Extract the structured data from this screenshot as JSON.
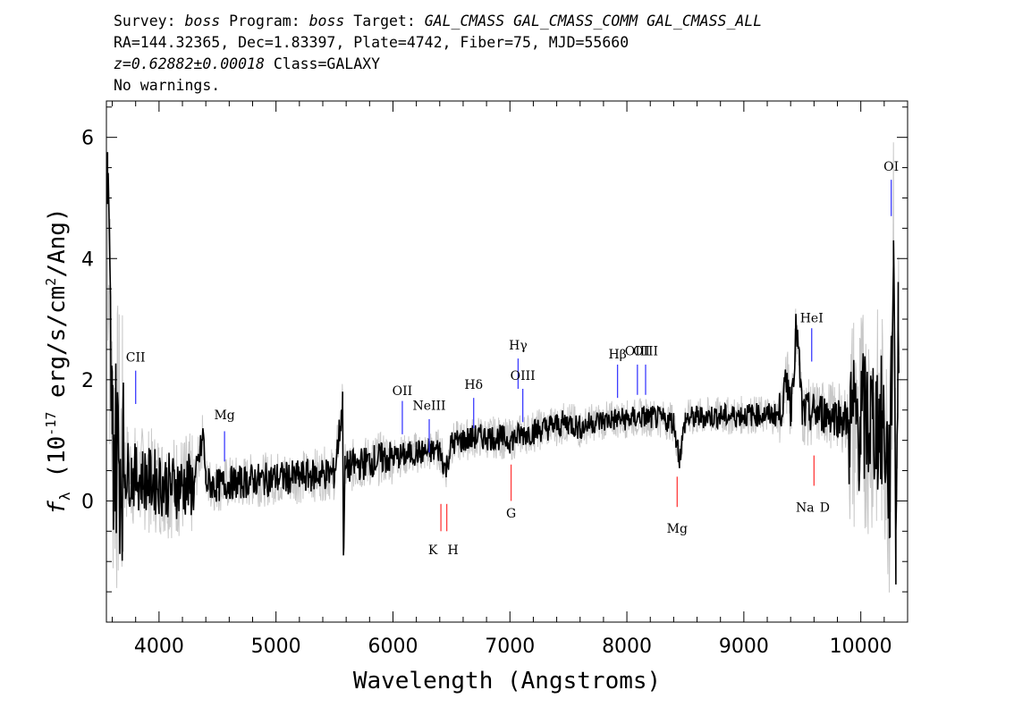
{
  "header": {
    "line1_a": "Survey: ",
    "line1_b": "boss",
    "line1_c": " Program: ",
    "line1_d": "boss",
    "line1_e": " Target: ",
    "line1_f": "GAL_CMASS GAL_CMASS_COMM GAL_CMASS_ALL",
    "line2": "RA=144.32365, Dec=1.83397, Plate=4742, Fiber=75, MJD=55660",
    "line3_a": "z=0.62882±0.00018",
    "line3_b": " Class=GALAXY",
    "line4": "No warnings."
  },
  "chart_data": {
    "type": "line",
    "xlabel": "Wavelength (Angstroms)",
    "ylabel": "f_λ (10^-17 erg/s/cm^2/Ang)",
    "xlim": [
      3550,
      10400
    ],
    "ylim": [
      -2.0,
      6.6
    ],
    "x_ticks": [
      4000,
      5000,
      6000,
      7000,
      8000,
      9000,
      10000
    ],
    "y_ticks": [
      0,
      2,
      4,
      6
    ],
    "colors": {
      "spectrum": "#000000",
      "error": "#c8c8c8",
      "emission": "#3c3cff",
      "absorption": "#ff3c3c"
    },
    "series": [
      {
        "x": [
          3560,
          3600,
          3700,
          3800,
          3900,
          4000,
          4100,
          4200,
          4300,
          4380,
          4400,
          4500,
          4600,
          4700,
          4800,
          4900,
          5000,
          5100,
          5200,
          5300,
          5400,
          5500,
          5570,
          5577,
          5590,
          5600,
          5700,
          5800,
          5900,
          6000,
          6100,
          6200,
          6300,
          6400,
          6450,
          6500,
          6600,
          6700,
          6800,
          6900,
          7000,
          7100,
          7200,
          7300,
          7400,
          7500,
          7600,
          7700,
          7800,
          7900,
          8000,
          8100,
          8200,
          8300,
          8400,
          8450,
          8500,
          8600,
          8700,
          8800,
          8900,
          9000,
          9100,
          9200,
          9300,
          9380,
          9400,
          9450,
          9500,
          9600,
          9700,
          9800,
          9900,
          10000,
          10100,
          10200,
          10250,
          10280,
          10300,
          10320
        ],
        "values": [
          4.9,
          1.1,
          0.5,
          0.4,
          0.35,
          0.3,
          0.25,
          0.25,
          0.25,
          1.1,
          0.3,
          0.25,
          0.3,
          0.3,
          0.35,
          0.35,
          0.38,
          0.38,
          0.4,
          0.42,
          0.45,
          0.45,
          1.6,
          -0.9,
          0.5,
          0.55,
          0.6,
          0.65,
          0.7,
          0.72,
          0.75,
          0.8,
          0.8,
          0.85,
          0.5,
          0.95,
          1.0,
          1.05,
          1.05,
          1.05,
          1.0,
          1.1,
          1.15,
          1.2,
          1.25,
          1.3,
          1.2,
          1.3,
          1.32,
          1.35,
          1.35,
          1.38,
          1.38,
          1.35,
          1.3,
          0.7,
          1.35,
          1.38,
          1.4,
          1.4,
          1.4,
          1.42,
          1.42,
          1.42,
          1.42,
          2.0,
          1.5,
          2.9,
          1.45,
          1.45,
          1.45,
          1.4,
          1.3,
          1.3,
          1.35,
          1.2,
          0.2,
          4.3,
          -0.5,
          2.8
        ]
      }
    ],
    "annotations": [
      {
        "label": "CII",
        "x": 3800,
        "kind": "emission"
      },
      {
        "label": "Mg",
        "x": 4560,
        "kind": "emission"
      },
      {
        "label": "OII",
        "x": 6080,
        "kind": "emission"
      },
      {
        "label": "NeIII",
        "x": 6310,
        "kind": "emission"
      },
      {
        "label": "Hδ",
        "x": 6690,
        "kind": "emission"
      },
      {
        "label": "Hγ",
        "x": 7070,
        "kind": "emission"
      },
      {
        "label": "OIII",
        "x": 7110,
        "kind": "emission"
      },
      {
        "label": "Hβ",
        "x": 7920,
        "kind": "emission"
      },
      {
        "label": "OIII",
        "x": 8090,
        "kind": "emission"
      },
      {
        "label": "OIII",
        "x": 8160,
        "kind": "emission"
      },
      {
        "label": "HeI",
        "x": 9580,
        "kind": "emission"
      },
      {
        "label": "OI",
        "x": 10260,
        "kind": "emission"
      },
      {
        "label": "K",
        "x": 6410,
        "kind": "absorption"
      },
      {
        "label": "H",
        "x": 6460,
        "kind": "absorption"
      },
      {
        "label": "G",
        "x": 7010,
        "kind": "absorption"
      },
      {
        "label": "Mg",
        "x": 8430,
        "kind": "absorption"
      },
      {
        "label": "Na",
        "x": 9600,
        "kind": "absorption"
      },
      {
        "label": "D",
        "x": 9600,
        "kind": "absorption"
      }
    ]
  }
}
